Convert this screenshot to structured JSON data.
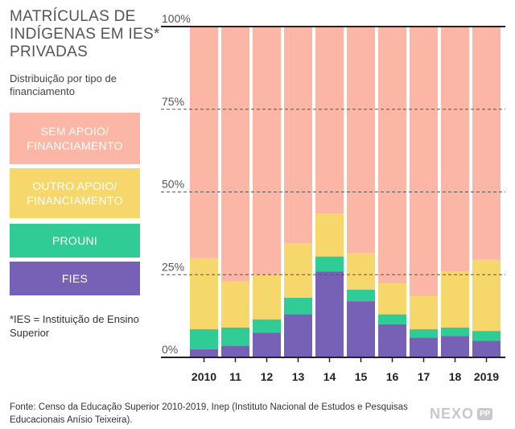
{
  "title": "MATRÍCULAS DE INDÍGENAS EM IES* PRIVADAS",
  "subtitle": "Distribuição por tipo de financiamento",
  "legend": [
    {
      "label": "SEM APOIO/ FINANCIAMENTO",
      "color": "#fbb6a6"
    },
    {
      "label": "OUTRO APOIO/ FINANCIAMENTO",
      "color": "#f6d76b"
    },
    {
      "label": "PROUNI",
      "color": "#2fcc96"
    },
    {
      "label": "FIES",
      "color": "#7661b6"
    }
  ],
  "note": "*IES = Instituição de Ensino Superior",
  "source": "Fonte: Censo da Educação Superior 2010-2019, Inep (Instituto Nacional de Estudos e Pesquisas Educacionais Anísio Teixeira).",
  "logo": {
    "text": "NEXO",
    "badge": "PP"
  },
  "chart_data": {
    "type": "bar",
    "stacked": true,
    "categories": [
      "2010",
      "11",
      "12",
      "13",
      "14",
      "15",
      "16",
      "17",
      "18",
      "2019"
    ],
    "series": [
      {
        "name": "FIES",
        "color": "#7661b6",
        "values": [
          2.5,
          3.5,
          7.5,
          13,
          26,
          17,
          10,
          6,
          6.5,
          5
        ]
      },
      {
        "name": "PROUNI",
        "color": "#2fcc96",
        "values": [
          6,
          5.5,
          4,
          5,
          4.5,
          3.5,
          3,
          2.5,
          2.5,
          3
        ]
      },
      {
        "name": "OUTRO APOIO/ FINANCIAMENTO",
        "color": "#f6d76b",
        "values": [
          21.5,
          14,
          13.5,
          16.5,
          13,
          11,
          9.5,
          10,
          17,
          21.5
        ]
      },
      {
        "name": "SEM APOIO/ FINANCIAMENTO",
        "color": "#fbb6a6",
        "values": [
          70,
          77,
          75,
          65.5,
          56.5,
          68.5,
          77.5,
          81.5,
          74,
          70.5
        ]
      }
    ],
    "yticks": [
      {
        "value": 0,
        "label": "0%"
      },
      {
        "value": 25,
        "label": "25%"
      },
      {
        "value": 50,
        "label": "50%"
      },
      {
        "value": 75,
        "label": "75%"
      },
      {
        "value": 100,
        "label": "100%"
      }
    ],
    "ylim": [
      0,
      100
    ],
    "xlabel": "",
    "ylabel": ""
  }
}
